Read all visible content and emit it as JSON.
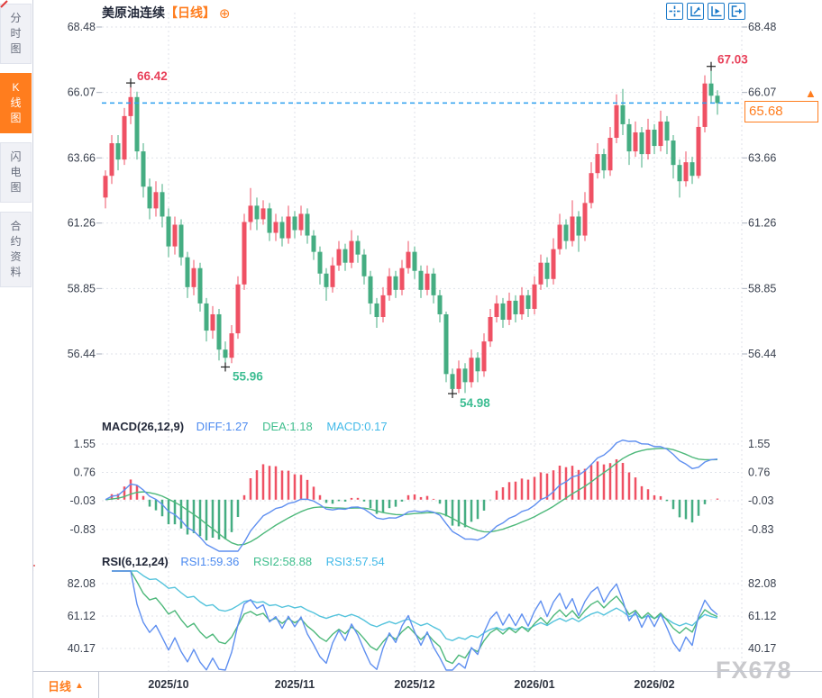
{
  "sidebar": {
    "items": [
      {
        "label": "分时图",
        "active": false
      },
      {
        "label": "K线图",
        "active": true
      },
      {
        "label": "闪电图",
        "active": false
      },
      {
        "label": "合约资料",
        "active": false
      }
    ]
  },
  "header": {
    "title": "美原油连续",
    "period_tag": "【日线】",
    "plus_icon": "⊕",
    "toolbar_icons": [
      "crosshair-tool",
      "axis-zoom-tool",
      "axis-play-tool",
      "exit-tool"
    ]
  },
  "price_panel": {
    "current_price": "65.68",
    "up_arrow": "▲"
  },
  "macd_panel": {
    "title": "MACD(26,12,9)",
    "diff_label": "DIFF:1.27",
    "dea_label": "DEA:1.18",
    "macd_label": "MACD:0.17"
  },
  "rsi_panel": {
    "title": "RSI(6,12,24)",
    "rsi1_label": "RSI1:59.36",
    "rsi2_label": "RSI2:58.88",
    "rsi3_label": "RSI3:57.54"
  },
  "bottom_bar": {
    "period": "日线",
    "arrow": "▲",
    "dates": [
      "2025/10",
      "2025/11",
      "2025/12",
      "2026/01",
      "2026/02"
    ]
  },
  "watermark": "FX678",
  "colors": {
    "accent_orange": "#ff7d1e",
    "up_candle": "#ef5164",
    "down_candle": "#45ad82",
    "current_price_line": "#2b9ff0",
    "grid": "#dfe2e9",
    "axis_text": "#39404e",
    "diff_line": "#5f8ff0",
    "dea_line": "#4db87a",
    "rsi3_line": "#54c3dc",
    "annotation_high": "#e8415a",
    "annotation_low": "#3dbd92",
    "toolbar_blue": "#1878c8",
    "cross_marker": "#222222"
  },
  "chart_data": {
    "type": "candlestick",
    "title": "美原油连续 日线 (US Crude Oil Continuous, daily)",
    "y_ticks": [
      68.48,
      66.07,
      63.66,
      61.26,
      58.85,
      56.44
    ],
    "ylim": [
      54.2,
      69.0
    ],
    "current_price": 65.68,
    "high_annotations": [
      {
        "index": 4,
        "price": 66.42
      },
      {
        "index": 96,
        "price": 67.03
      }
    ],
    "low_annotations": [
      {
        "index": 19,
        "price": 55.96
      },
      {
        "index": 55,
        "price": 54.98
      }
    ],
    "month_ticks": [
      {
        "label": "2025/10",
        "index": 10
      },
      {
        "label": "2025/11",
        "index": 30
      },
      {
        "label": "2025/12",
        "index": 49
      },
      {
        "label": "2026/01",
        "index": 68
      },
      {
        "label": "2026/02",
        "index": 87
      }
    ],
    "candles": [
      [
        62.2,
        63.2,
        61.8,
        63.0
      ],
      [
        63.0,
        64.5,
        62.7,
        64.2
      ],
      [
        64.2,
        64.5,
        63.2,
        63.6
      ],
      [
        63.6,
        65.5,
        63.4,
        65.2
      ],
      [
        65.2,
        66.42,
        64.9,
        65.9
      ],
      [
        65.9,
        66.1,
        63.6,
        63.9
      ],
      [
        63.9,
        64.2,
        62.2,
        62.6
      ],
      [
        62.6,
        62.9,
        61.4,
        61.8
      ],
      [
        61.8,
        62.8,
        61.5,
        62.4
      ],
      [
        62.4,
        62.7,
        61.1,
        61.5
      ],
      [
        61.5,
        61.8,
        60.0,
        60.4
      ],
      [
        60.4,
        61.5,
        60.1,
        61.2
      ],
      [
        61.2,
        61.4,
        59.7,
        60.0
      ],
      [
        60.0,
        60.2,
        58.5,
        58.9
      ],
      [
        58.9,
        59.9,
        58.6,
        59.6
      ],
      [
        59.6,
        59.8,
        58.0,
        58.3
      ],
      [
        58.3,
        58.5,
        56.9,
        57.3
      ],
      [
        57.3,
        58.2,
        57.0,
        57.9
      ],
      [
        57.9,
        58.1,
        56.2,
        56.6
      ],
      [
        56.6,
        56.9,
        55.96,
        56.3
      ],
      [
        56.3,
        57.5,
        56.1,
        57.2
      ],
      [
        57.2,
        59.3,
        57.0,
        59.0
      ],
      [
        59.0,
        61.6,
        58.8,
        61.3
      ],
      [
        61.3,
        62.55,
        61.0,
        61.9
      ],
      [
        61.9,
        62.2,
        61.0,
        61.4
      ],
      [
        61.4,
        62.1,
        61.2,
        61.8
      ],
      [
        61.8,
        62.0,
        60.6,
        60.9
      ],
      [
        60.9,
        61.6,
        60.6,
        61.3
      ],
      [
        61.3,
        61.5,
        60.4,
        60.7
      ],
      [
        60.7,
        61.9,
        60.5,
        61.5
      ],
      [
        61.5,
        61.7,
        60.7,
        61.0
      ],
      [
        61.0,
        61.9,
        60.8,
        61.6
      ],
      [
        61.6,
        61.8,
        60.5,
        60.8
      ],
      [
        60.8,
        61.0,
        59.9,
        60.2
      ],
      [
        60.2,
        60.4,
        59.0,
        59.4
      ],
      [
        59.4,
        59.6,
        58.4,
        58.9
      ],
      [
        58.9,
        60.0,
        58.7,
        59.7
      ],
      [
        59.7,
        60.6,
        59.5,
        60.3
      ],
      [
        60.3,
        60.5,
        59.5,
        59.8
      ],
      [
        59.8,
        61.0,
        59.6,
        60.6
      ],
      [
        60.6,
        60.8,
        59.8,
        60.1
      ],
      [
        60.1,
        60.3,
        59.0,
        59.3
      ],
      [
        59.3,
        59.5,
        57.9,
        58.3
      ],
      [
        58.3,
        58.5,
        57.4,
        57.8
      ],
      [
        57.8,
        58.9,
        57.6,
        58.6
      ],
      [
        58.6,
        59.6,
        58.4,
        59.3
      ],
      [
        59.3,
        59.5,
        58.5,
        58.8
      ],
      [
        58.8,
        59.9,
        58.6,
        59.6
      ],
      [
        59.6,
        60.6,
        59.4,
        60.2
      ],
      [
        60.2,
        60.4,
        59.2,
        59.5
      ],
      [
        59.5,
        59.7,
        58.5,
        58.8
      ],
      [
        58.8,
        59.7,
        58.6,
        59.4
      ],
      [
        59.4,
        59.6,
        58.3,
        58.6
      ],
      [
        58.6,
        58.8,
        57.6,
        57.9
      ],
      [
        57.9,
        58.0,
        55.4,
        55.7
      ],
      [
        55.7,
        55.9,
        54.98,
        55.15
      ],
      [
        55.15,
        56.2,
        55.0,
        55.9
      ],
      [
        55.9,
        56.1,
        55.0,
        55.4
      ],
      [
        55.4,
        56.6,
        55.2,
        56.3
      ],
      [
        56.3,
        56.5,
        55.4,
        55.8
      ],
      [
        55.8,
        57.2,
        55.6,
        56.9
      ],
      [
        56.9,
        58.1,
        56.7,
        57.8
      ],
      [
        57.8,
        58.6,
        57.6,
        58.3
      ],
      [
        58.3,
        58.5,
        57.4,
        57.7
      ],
      [
        57.7,
        58.7,
        57.5,
        58.4
      ],
      [
        58.4,
        58.6,
        57.6,
        57.9
      ],
      [
        57.9,
        58.9,
        57.7,
        58.6
      ],
      [
        58.6,
        58.8,
        57.8,
        58.1
      ],
      [
        58.1,
        59.3,
        57.9,
        59.0
      ],
      [
        59.0,
        60.1,
        58.8,
        59.8
      ],
      [
        59.8,
        60.0,
        58.9,
        59.2
      ],
      [
        59.2,
        60.7,
        59.0,
        60.3
      ],
      [
        60.3,
        61.6,
        60.1,
        61.2
      ],
      [
        61.2,
        61.4,
        60.3,
        60.6
      ],
      [
        60.6,
        62.1,
        60.4,
        61.5
      ],
      [
        61.5,
        61.7,
        60.2,
        60.8
      ],
      [
        60.8,
        62.4,
        60.6,
        62.0
      ],
      [
        62.0,
        63.5,
        61.8,
        63.1
      ],
      [
        63.1,
        64.2,
        62.9,
        63.8
      ],
      [
        63.8,
        64.0,
        62.9,
        63.2
      ],
      [
        63.2,
        64.8,
        63.0,
        64.4
      ],
      [
        64.4,
        66.0,
        64.2,
        65.6
      ],
      [
        65.6,
        66.2,
        64.5,
        64.9
      ],
      [
        64.9,
        65.1,
        63.4,
        63.9
      ],
      [
        63.9,
        65.0,
        63.7,
        64.6
      ],
      [
        64.6,
        64.8,
        63.3,
        63.8
      ],
      [
        63.8,
        65.1,
        63.6,
        64.7
      ],
      [
        64.7,
        64.9,
        63.8,
        64.1
      ],
      [
        64.1,
        65.4,
        63.9,
        65.0
      ],
      [
        65.0,
        65.2,
        63.8,
        64.3
      ],
      [
        64.3,
        64.5,
        62.9,
        63.4
      ],
      [
        63.4,
        63.6,
        62.2,
        62.8
      ],
      [
        62.8,
        63.9,
        62.6,
        63.5
      ],
      [
        63.5,
        63.7,
        62.7,
        63.0
      ],
      [
        63.0,
        65.2,
        62.9,
        64.8
      ],
      [
        64.8,
        66.7,
        64.6,
        66.4
      ],
      [
        66.4,
        67.03,
        65.7,
        65.95
      ],
      [
        65.95,
        66.15,
        65.25,
        65.68
      ]
    ],
    "indicators": {
      "macd": {
        "params": [
          26,
          12,
          9
        ],
        "shown_values": {
          "diff": 1.27,
          "dea": 1.18,
          "macd": 0.17
        },
        "y_ticks": [
          1.55,
          0.76,
          -0.03,
          -0.83
        ]
      },
      "rsi": {
        "params": [
          6,
          12,
          24
        ],
        "shown_values": {
          "rsi1": 59.36,
          "rsi2": 58.88,
          "rsi3": 57.54
        },
        "y_ticks": [
          82.08,
          61.12,
          40.17
        ]
      }
    }
  }
}
